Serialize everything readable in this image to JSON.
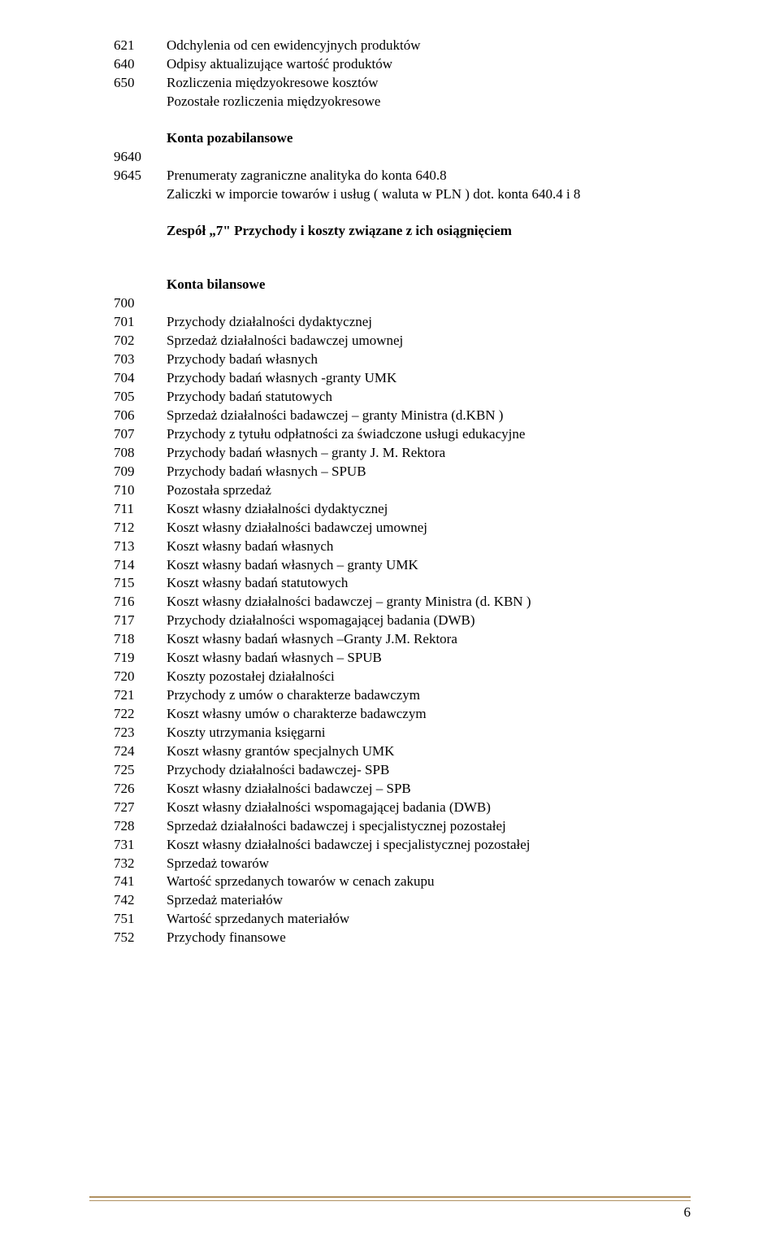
{
  "page": {
    "number": "6",
    "footerLineColor": "#b09060",
    "fontFamily": "Times New Roman",
    "fontSizePt": 13
  },
  "section1": {
    "rows": [
      {
        "code": "621",
        "text": "Odchylenia od cen ewidencyjnych produktów"
      },
      {
        "code": "640",
        "text": "Odpisy aktualizujące wartość produktów"
      },
      {
        "code": "650",
        "text": "Rozliczenia międzyokresowe kosztów"
      },
      {
        "code": "",
        "text": "Pozostałe rozliczenia międzyokresowe"
      }
    ]
  },
  "section2": {
    "heading": "Konta pozabilansowe",
    "rows": [
      {
        "code": "9640",
        "text": ""
      },
      {
        "code": "9645",
        "text": "Prenumeraty zagraniczne analityka do konta 640.8"
      },
      {
        "code": "",
        "text": "Zaliczki w imporcie towarów i usług ( waluta w PLN ) dot. konta 640.4 i 8"
      }
    ]
  },
  "zespolHeading": "Zespół „7\" Przychody i koszty związane z ich osiągnięciem",
  "section3": {
    "heading": "Konta bilansowe",
    "rows": [
      {
        "code": "700",
        "text": ""
      },
      {
        "code": "701",
        "text": "Przychody działalności dydaktycznej"
      },
      {
        "code": "702",
        "text": "Sprzedaż działalności badawczej umownej"
      },
      {
        "code": "703",
        "text": "Przychody badań własnych"
      },
      {
        "code": "704",
        "text": "Przychody badań własnych  -granty UMK"
      },
      {
        "code": "705",
        "text": "Przychody badań statutowych"
      },
      {
        "code": "706",
        "text": "Sprzedaż działalności badawczej – granty Ministra (d.KBN )"
      },
      {
        "code": "707",
        "text": "Przychody z tytułu odpłatności za świadczone usługi edukacyjne"
      },
      {
        "code": "708",
        "text": "Przychody badań własnych – granty J. M. Rektora"
      },
      {
        "code": "709",
        "text": "Przychody badań własnych – SPUB"
      },
      {
        "code": "710",
        "text": "Pozostała sprzedaż"
      },
      {
        "code": "711",
        "text": "Koszt własny działalności dydaktycznej"
      },
      {
        "code": "712",
        "text": "Koszt własny działalności badawczej umownej"
      },
      {
        "code": "713",
        "text": "Koszt własny badań własnych"
      },
      {
        "code": "714",
        "text": "Koszt własny badań własnych – granty UMK"
      },
      {
        "code": "715",
        "text": "Koszt własny badań statutowych"
      },
      {
        "code": "716",
        "text": "Koszt własny działalności badawczej – granty Ministra (d. KBN )"
      },
      {
        "code": "717",
        "text": "Przychody działalności wspomagającej badania (DWB)"
      },
      {
        "code": "718",
        "text": "Koszt własny badań własnych –Granty J.M. Rektora"
      },
      {
        "code": "719",
        "text": "Koszt własny badań własnych – SPUB"
      },
      {
        "code": "720",
        "text": "Koszty pozostałej działalności"
      },
      {
        "code": "721",
        "text": "Przychody z umów o charakterze badawczym"
      },
      {
        "code": "722",
        "text": "Koszt własny umów o charakterze badawczym"
      },
      {
        "code": "723",
        "text": "Koszty utrzymania księgarni"
      },
      {
        "code": "724",
        "text": "Koszt własny grantów specjalnych UMK"
      },
      {
        "code": "725",
        "text": "Przychody  działalności badawczej- SPB"
      },
      {
        "code": "726",
        "text": "Koszt własny działalności badawczej – SPB"
      },
      {
        "code": "727",
        "text": "Koszt własny działalności wspomagającej badania (DWB)"
      },
      {
        "code": "728",
        "text": "Sprzedaż działalności badawczej i specjalistycznej pozostałej"
      },
      {
        "code": "731",
        "text": "Koszt własny działalności badawczej i specjalistycznej pozostałej"
      },
      {
        "code": "732",
        "text": "Sprzedaż towarów"
      },
      {
        "code": "741",
        "text": "Wartość  sprzedanych towarów w cenach zakupu"
      },
      {
        "code": "742",
        "text": "Sprzedaż materiałów"
      },
      {
        "code": "751",
        "text": "Wartość sprzedanych materiałów"
      },
      {
        "code": "752",
        "text": "Przychody finansowe"
      }
    ]
  }
}
